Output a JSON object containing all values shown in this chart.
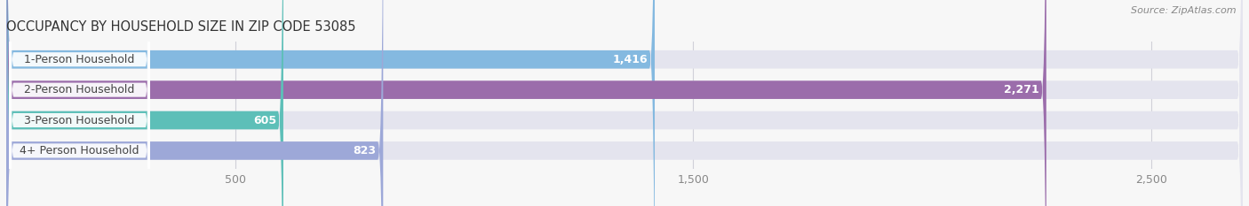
{
  "title": "OCCUPANCY BY HOUSEHOLD SIZE IN ZIP CODE 53085",
  "source": "Source: ZipAtlas.com",
  "categories": [
    "1-Person Household",
    "2-Person Household",
    "3-Person Household",
    "4+ Person Household"
  ],
  "values": [
    1416,
    2271,
    605,
    823
  ],
  "bar_colors": [
    "#84b9e0",
    "#9b6dab",
    "#5dbfb8",
    "#9da8d8"
  ],
  "bar_bg_color": "#e4e4ee",
  "value_labels": [
    "1,416",
    "2,271",
    "605",
    "823"
  ],
  "xlim_max": 2700,
  "xticks": [
    500,
    1500,
    2500
  ],
  "xtick_labels": [
    "500",
    "1,500",
    "2,500"
  ],
  "title_fontsize": 10.5,
  "source_fontsize": 8,
  "label_fontsize": 9,
  "value_fontsize": 9,
  "tick_fontsize": 9,
  "background_color": "#f7f7f7",
  "bar_height": 0.6,
  "label_pill_color": "#ffffff",
  "label_text_color": "#444444",
  "value_color_inside": "#ffffff",
  "value_color_outside": "#666666",
  "grid_color": "#d0d0d8",
  "title_color": "#333333",
  "source_color": "#888888"
}
